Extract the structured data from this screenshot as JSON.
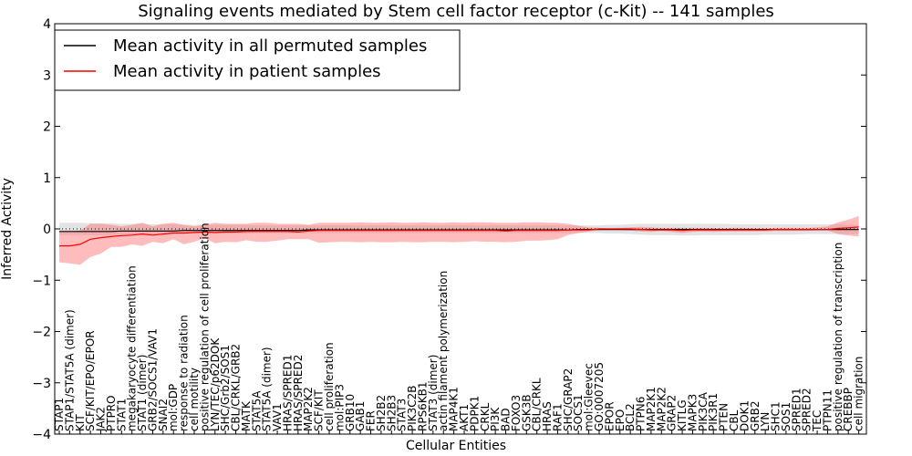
{
  "chart_data": {
    "type": "line",
    "title": "Signaling events mediated by Stem cell factor receptor (c-Kit) -- 141 samples",
    "xlabel": "Cellular Entities",
    "ylabel": "Inferred Activity",
    "ylim": [
      -4,
      4
    ],
    "yticks": [
      -4,
      -3,
      -2,
      -1,
      0,
      1,
      2,
      3,
      4
    ],
    "legend": {
      "location": "top-left",
      "entries": [
        {
          "label": "Mean activity in all permuted samples",
          "color": "#000000"
        },
        {
          "label": "Mean activity in patient samples",
          "color": "#ff0000"
        }
      ]
    },
    "categories": [
      "STAP1",
      "STAP1/STAT5A (dimer)",
      "KIT",
      "SCF/KIT/EPO/EPOR",
      "JAK2",
      "PTPRO",
      "STAT1",
      "megakaryocyte differentiation",
      "STAT1 (dimer)",
      "GRB2/SOCS1/VAV1",
      "SNAI2",
      "mol:GDP",
      "response to radiation",
      "cell motility",
      "positive regulation of cell proliferation",
      "LYN/TEC/p62DOK",
      "SHC/Grb2/SOS1",
      "CBL/CRKL/GRB2",
      "MATK",
      "STAT5A",
      "STAT5A (dimer)",
      "VAV1",
      "HRAS/SPRED1",
      "HRAS/SPRED2",
      "MAP2K2",
      "SCF/KIT",
      "cell proliferation",
      "mol:PIP3",
      "GRB10",
      "GAB1",
      "FER",
      "SH2B2",
      "SH2B3",
      "STAT3",
      "PIK3C2B",
      "RPS6KB1",
      "STAT3 (dimer)",
      "actin filament polymerization",
      "MAP4K1",
      "AKT1",
      "PDPK1",
      "CRKL",
      "PI3K",
      "BAD",
      "FOXO3",
      "GSK3B",
      "CBL/CRKL",
      "HRAS",
      "RAF1",
      "SHC/GRAP2",
      "SOCS1",
      "mol:Gleevec",
      "GO:0007205",
      "EPOR",
      "EPO",
      "BCL2",
      "PTPN6",
      "MAP2K1",
      "MAP2K2",
      "GRAP2",
      "KITLG",
      "MAPK3",
      "PIK3CA",
      "PIK3R1",
      "PTEN",
      "CBL",
      "DOK1",
      "GRB2",
      "LYN",
      "SHC1",
      "SOS1",
      "SPRED1",
      "SPRED2",
      "TEC",
      "PTPN11",
      "positive regulation of transcription",
      "CREBBP",
      "cell migration"
    ],
    "series": [
      {
        "name": "Mean activity in all permuted samples",
        "color": "#000000",
        "values": [
          -0.05,
          -0.05,
          -0.05,
          -0.05,
          -0.05,
          -0.05,
          -0.04,
          -0.04,
          -0.04,
          -0.04,
          -0.04,
          -0.04,
          -0.03,
          -0.03,
          -0.03,
          -0.03,
          -0.03,
          -0.03,
          -0.03,
          -0.03,
          -0.03,
          -0.03,
          -0.03,
          -0.03,
          -0.02,
          -0.02,
          -0.02,
          -0.02,
          -0.02,
          -0.02,
          -0.02,
          -0.02,
          -0.02,
          -0.02,
          -0.02,
          -0.02,
          -0.02,
          -0.02,
          -0.02,
          -0.02,
          -0.02,
          -0.02,
          -0.02,
          -0.02,
          -0.02,
          -0.02,
          -0.02,
          -0.02,
          -0.02,
          -0.02,
          -0.01,
          -0.01,
          -0.01,
          -0.01,
          -0.01,
          -0.01,
          -0.01,
          -0.01,
          -0.01,
          -0.01,
          -0.01,
          -0.01,
          -0.01,
          -0.01,
          -0.01,
          -0.01,
          -0.01,
          -0.01,
          -0.01,
          -0.01,
          -0.01,
          -0.01,
          -0.01,
          -0.01,
          -0.01,
          -0.01,
          -0.01,
          -0.01
        ],
        "lower": [
          -0.12,
          -0.12,
          -0.12,
          -0.12,
          -0.12,
          -0.12,
          -0.11,
          -0.11,
          -0.11,
          -0.1,
          -0.1,
          -0.1,
          -0.09,
          -0.09,
          -0.09,
          -0.09,
          -0.09,
          -0.09,
          -0.09,
          -0.08,
          -0.08,
          -0.08,
          -0.08,
          -0.08,
          -0.08,
          -0.08,
          -0.08,
          -0.08,
          -0.08,
          -0.08,
          -0.08,
          -0.08,
          -0.08,
          -0.08,
          -0.08,
          -0.08,
          -0.08,
          -0.08,
          -0.08,
          -0.08,
          -0.08,
          -0.08,
          -0.08,
          -0.08,
          -0.08,
          -0.08,
          -0.08,
          -0.08,
          -0.08,
          -0.08,
          -0.08,
          -0.08,
          -0.08,
          -0.09,
          -0.09,
          -0.1,
          -0.11,
          -0.12,
          -0.12,
          -0.12,
          -0.13,
          -0.13,
          -0.12,
          -0.12,
          -0.12,
          -0.12,
          -0.12,
          -0.12,
          -0.11,
          -0.11,
          -0.11,
          -0.11,
          -0.1,
          -0.1,
          -0.1,
          -0.1,
          -0.1,
          -0.1
        ],
        "upper": [
          0.12,
          0.12,
          0.12,
          0.11,
          0.11,
          0.11,
          0.1,
          0.1,
          0.1,
          0.09,
          0.09,
          0.09,
          0.08,
          0.08,
          0.08,
          0.08,
          0.08,
          0.08,
          0.08,
          0.07,
          0.07,
          0.07,
          0.07,
          0.07,
          0.07,
          0.07,
          0.07,
          0.07,
          0.07,
          0.07,
          0.07,
          0.07,
          0.07,
          0.07,
          0.07,
          0.07,
          0.07,
          0.07,
          0.07,
          0.07,
          0.07,
          0.07,
          0.07,
          0.07,
          0.07,
          0.07,
          0.07,
          0.07,
          0.07,
          0.07,
          0.07,
          0.07,
          0.07,
          0.08,
          0.08,
          0.09,
          0.1,
          0.1,
          0.1,
          0.1,
          0.1,
          0.1,
          0.1,
          0.1,
          0.1,
          0.09,
          0.09,
          0.09,
          0.09,
          0.09,
          0.09,
          0.09,
          0.09,
          0.09,
          0.09,
          0.09,
          0.08,
          0.08
        ]
      },
      {
        "name": "Mean activity in patient samples",
        "color": "#ff0000",
        "values": [
          -0.33,
          -0.33,
          -0.3,
          -0.2,
          -0.17,
          -0.15,
          -0.13,
          -0.12,
          -0.1,
          -0.12,
          -0.1,
          -0.08,
          -0.08,
          -0.07,
          -0.06,
          -0.07,
          -0.06,
          -0.06,
          -0.05,
          -0.05,
          -0.05,
          -0.05,
          -0.05,
          -0.06,
          -0.04,
          -0.03,
          -0.03,
          -0.03,
          -0.03,
          -0.03,
          -0.03,
          -0.03,
          -0.03,
          -0.03,
          -0.03,
          -0.03,
          -0.03,
          -0.03,
          -0.03,
          -0.03,
          -0.03,
          -0.03,
          -0.03,
          -0.04,
          -0.03,
          -0.03,
          -0.03,
          -0.03,
          -0.03,
          -0.02,
          -0.02,
          -0.02,
          0.0,
          0.0,
          0.0,
          0.0,
          -0.01,
          -0.02,
          -0.02,
          -0.02,
          -0.03,
          -0.02,
          -0.02,
          -0.02,
          -0.02,
          -0.02,
          -0.02,
          -0.02,
          -0.02,
          -0.01,
          -0.01,
          -0.01,
          -0.01,
          -0.01,
          -0.01,
          0.01,
          0.02,
          0.04
        ],
        "lower": [
          -0.65,
          -0.67,
          -0.7,
          -0.55,
          -0.48,
          -0.35,
          -0.35,
          -0.3,
          -0.33,
          -0.25,
          -0.28,
          -0.2,
          -0.3,
          -0.25,
          -0.18,
          -0.28,
          -0.25,
          -0.26,
          -0.22,
          -0.25,
          -0.25,
          -0.23,
          -0.2,
          -0.2,
          -0.2,
          -0.27,
          -0.26,
          -0.25,
          -0.25,
          -0.26,
          -0.25,
          -0.26,
          -0.26,
          -0.25,
          -0.26,
          -0.26,
          -0.25,
          -0.25,
          -0.26,
          -0.25,
          -0.24,
          -0.25,
          -0.25,
          -0.26,
          -0.25,
          -0.23,
          -0.23,
          -0.22,
          -0.2,
          -0.12,
          -0.08,
          -0.05,
          -0.02,
          -0.01,
          -0.02,
          -0.03,
          -0.05,
          -0.06,
          -0.04,
          -0.06,
          -0.08,
          -0.06,
          -0.05,
          -0.06,
          -0.05,
          -0.05,
          -0.05,
          -0.05,
          -0.05,
          -0.04,
          -0.04,
          -0.04,
          -0.04,
          -0.03,
          -0.03,
          -0.1,
          -0.13,
          -0.15
        ],
        "upper": [
          -0.05,
          -0.05,
          -0.03,
          0.1,
          0.1,
          0.08,
          0.05,
          0.08,
          0.12,
          0.05,
          0.1,
          0.12,
          0.08,
          0.05,
          0.08,
          0.12,
          0.1,
          0.1,
          0.1,
          0.12,
          0.12,
          0.1,
          0.1,
          0.1,
          0.08,
          0.12,
          0.12,
          0.12,
          0.12,
          0.13,
          0.12,
          0.12,
          0.13,
          0.12,
          0.12,
          0.13,
          0.12,
          0.12,
          0.13,
          0.12,
          0.13,
          0.13,
          0.12,
          0.12,
          0.12,
          0.13,
          0.13,
          0.12,
          0.12,
          0.1,
          0.06,
          0.03,
          0.02,
          0.01,
          0.02,
          0.03,
          0.04,
          0.03,
          0.02,
          0.02,
          0.02,
          0.02,
          0.02,
          0.02,
          0.01,
          0.02,
          0.02,
          0.01,
          0.01,
          0.02,
          0.02,
          0.02,
          0.02,
          0.03,
          0.05,
          0.13,
          0.18,
          0.25
        ]
      }
    ]
  }
}
